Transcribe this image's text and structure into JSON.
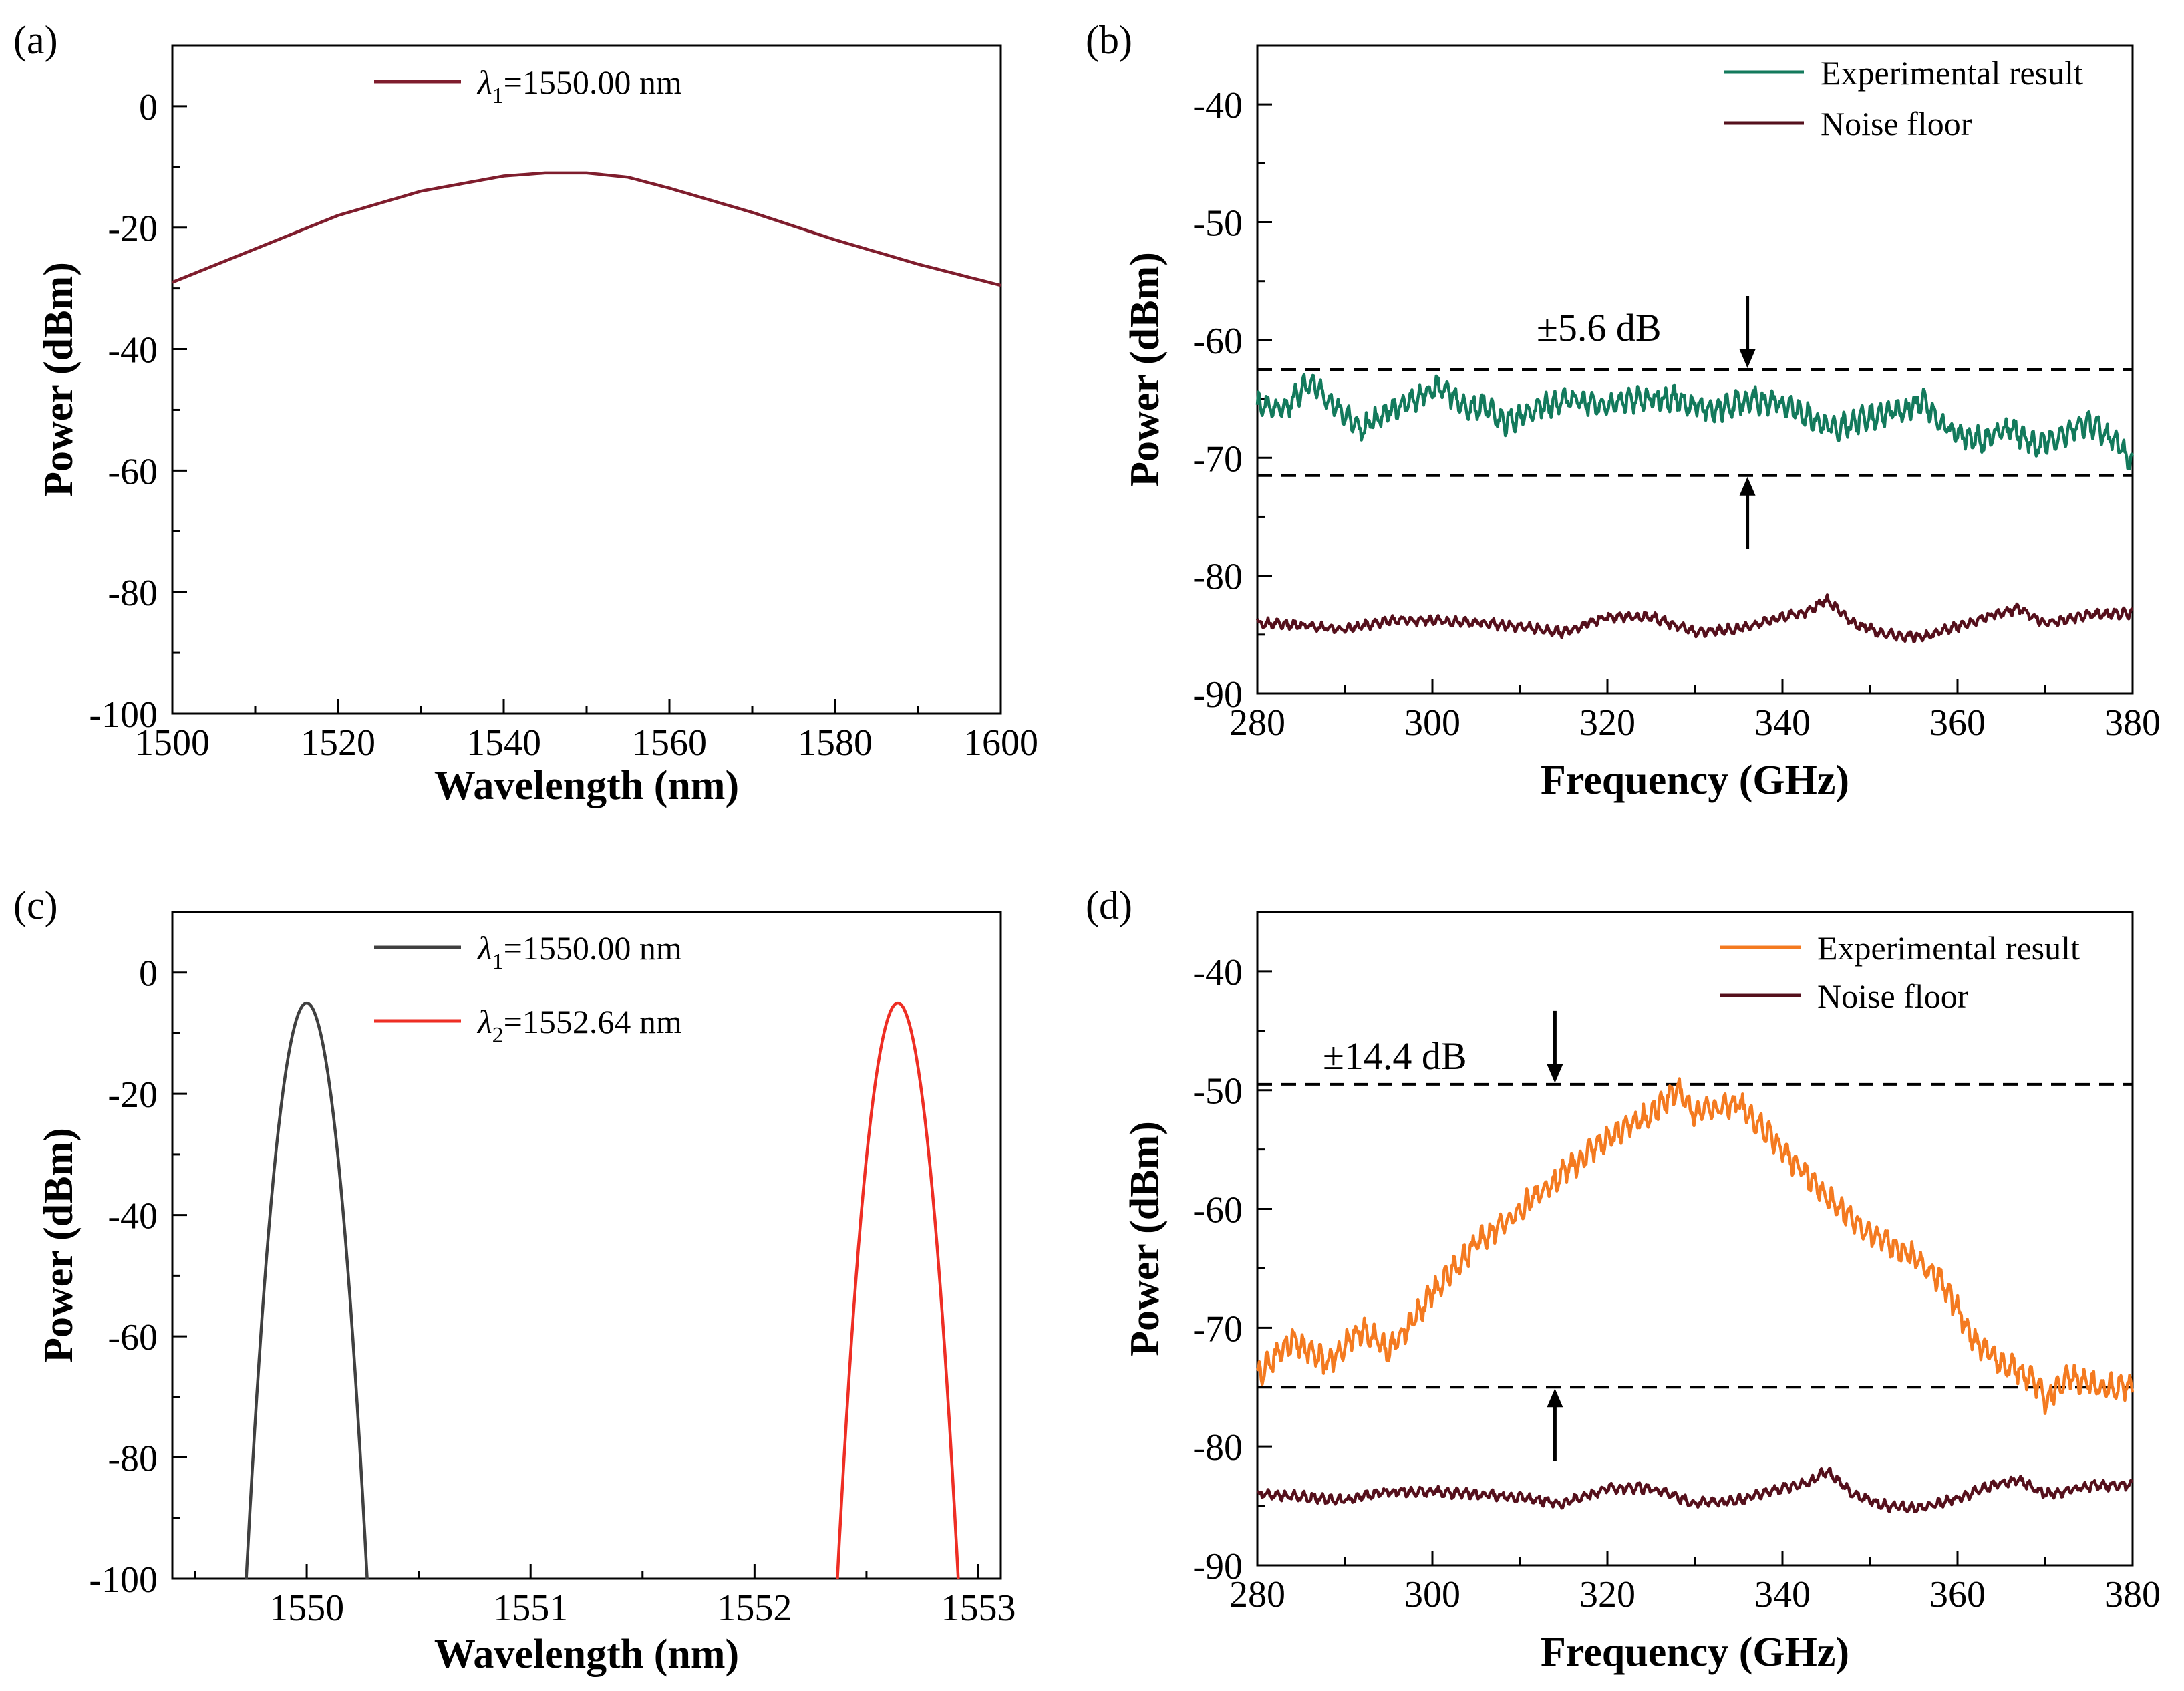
{
  "chart_data": [
    {
      "id": "a",
      "panel_label": "(a)",
      "type": "line",
      "xlabel": "Wavelength (nm)",
      "ylabel": "Power (dBm)",
      "xlim": [
        1500,
        1600
      ],
      "ylim": [
        -100,
        10
      ],
      "xticks": [
        1500,
        1520,
        1540,
        1560,
        1580,
        1600
      ],
      "yticks": [
        -100,
        -80,
        -60,
        -40,
        -20,
        0
      ],
      "legend_position": "top-center",
      "series": [
        {
          "name": "λ1=1550.00 nm",
          "legend": {
            "prefix": "λ",
            "sub": "1",
            "suffix": "=1550.00 nm"
          },
          "color": "#7f1d2d",
          "x": [
            1500,
            1510,
            1520,
            1530,
            1540,
            1545,
            1550,
            1555,
            1560,
            1570,
            1580,
            1590,
            1600
          ],
          "y": [
            -29,
            -23.5,
            -18,
            -14,
            -11.5,
            -11,
            -11,
            -11.7,
            -13.5,
            -17.5,
            -22,
            -26,
            -29.5
          ]
        }
      ],
      "reference_lines": [],
      "annotation": null
    },
    {
      "id": "b",
      "panel_label": "(b)",
      "type": "line",
      "xlabel": "Frequency (GHz)",
      "ylabel": "Power (dBm)",
      "xlim": [
        280,
        380
      ],
      "ylim": [
        -90,
        -35
      ],
      "xticks": [
        280,
        300,
        320,
        340,
        360,
        380
      ],
      "yticks": [
        -90,
        -80,
        -70,
        -60,
        -50,
        -40
      ],
      "legend_position": "top-right",
      "series": [
        {
          "name": "Experimental result",
          "color": "#137a5c",
          "x": [
            280,
            283,
            286,
            288,
            290,
            292,
            295,
            298,
            300,
            302,
            304,
            306,
            308,
            310,
            313,
            316,
            320,
            324,
            328,
            332,
            336,
            340,
            342,
            344,
            346,
            350,
            354,
            356,
            358,
            360,
            363,
            366,
            369,
            372,
            375,
            378,
            380
          ],
          "y": [
            -65.5,
            -66,
            -63.5,
            -65,
            -66.5,
            -67.5,
            -66,
            -65,
            -64,
            -64.5,
            -66,
            -65.5,
            -67,
            -66.5,
            -65.5,
            -65,
            -65.5,
            -65,
            -65,
            -66,
            -65,
            -65.5,
            -66,
            -67,
            -67.5,
            -66.5,
            -66,
            -65,
            -67,
            -68,
            -68.5,
            -67.5,
            -69,
            -68,
            -67,
            -68.5,
            -70.5
          ],
          "noise_amp": 1.2
        },
        {
          "name": "Noise floor",
          "color": "#55101c",
          "x": [
            280,
            285,
            290,
            295,
            300,
            305,
            310,
            315,
            320,
            325,
            330,
            335,
            340,
            343,
            345,
            348,
            352,
            356,
            360,
            364,
            367,
            370,
            372,
            375,
            380
          ],
          "y": [
            -84,
            -84.2,
            -84.5,
            -83.8,
            -83.8,
            -84,
            -84.3,
            -84.8,
            -83.5,
            -83.5,
            -84.8,
            -84.5,
            -83.5,
            -83,
            -82,
            -84,
            -85,
            -85.2,
            -84.3,
            -83.3,
            -82.8,
            -84,
            -83.8,
            -83.3,
            -83.2
          ],
          "noise_amp": 0.5
        }
      ],
      "reference_lines": [
        -62.5,
        -71.5
      ],
      "annotation": {
        "text": "±5.6 dB",
        "arrow_x": 336
      }
    },
    {
      "id": "c",
      "panel_label": "(c)",
      "type": "line",
      "xlabel": "Wavelength (nm)",
      "ylabel": "Power (dBm)",
      "xlim": [
        1549.4,
        1553.1
      ],
      "ylim": [
        -100,
        10
      ],
      "xticks": [
        1550,
        1551,
        1552,
        1553
      ],
      "yticks": [
        -100,
        -80,
        -60,
        -40,
        -20,
        0
      ],
      "legend_position": "top-center",
      "series": [
        {
          "name": "λ1=1550.00 nm",
          "legend": {
            "prefix": "λ",
            "sub": "1",
            "suffix": "=1550.00 nm"
          },
          "color": "#404040",
          "peak": 1550.0,
          "peak_power": -5,
          "x_start": 1549.73,
          "x_end": 1550.27
        },
        {
          "name": "λ2=1552.64 nm",
          "legend": {
            "prefix": "λ",
            "sub": "2",
            "suffix": "=1552.64 nm"
          },
          "color": "#ee2e24",
          "peak": 1552.64,
          "peak_power": -5,
          "x_start": 1552.37,
          "x_end": 1552.91
        }
      ],
      "reference_lines": [],
      "annotation": null
    },
    {
      "id": "d",
      "panel_label": "(d)",
      "type": "line",
      "xlabel": "Frequency (GHz)",
      "ylabel": "Power (dBm)",
      "xlim": [
        280,
        380
      ],
      "ylim": [
        -90,
        -35
      ],
      "xticks": [
        280,
        300,
        320,
        340,
        360,
        380
      ],
      "yticks": [
        -90,
        -80,
        -70,
        -60,
        -50,
        -40
      ],
      "legend_position": "top-right",
      "series": [
        {
          "name": "Experimental result",
          "color": "#f47a20",
          "x": [
            280,
            284,
            288,
            292,
            295,
            300,
            305,
            310,
            315,
            320,
            325,
            328,
            330,
            335,
            340,
            345,
            350,
            355,
            358,
            362,
            365,
            368,
            370,
            373,
            376,
            380
          ],
          "y": [
            -74,
            -71,
            -73,
            -70,
            -72,
            -67,
            -63,
            -60,
            -57,
            -54,
            -52,
            -50,
            -52,
            -51,
            -55,
            -59,
            -62,
            -64,
            -66,
            -71,
            -73,
            -74,
            -76,
            -74,
            -75,
            -75
          ],
          "noise_amp": 1.3
        },
        {
          "name": "Noise floor",
          "color": "#55101c",
          "x": [
            280,
            285,
            290,
            295,
            300,
            305,
            310,
            315,
            320,
            325,
            330,
            335,
            340,
            343,
            345,
            348,
            352,
            356,
            360,
            364,
            367,
            370,
            372,
            375,
            380
          ],
          "y": [
            -84,
            -84.2,
            -84.5,
            -83.8,
            -83.8,
            -84,
            -84.3,
            -84.8,
            -83.5,
            -83.5,
            -84.8,
            -84.5,
            -83.5,
            -83,
            -82,
            -84,
            -85,
            -85.2,
            -84.3,
            -83.3,
            -82.8,
            -84,
            -83.8,
            -83.3,
            -83.2
          ],
          "noise_amp": 0.5
        }
      ],
      "reference_lines": [
        -49.5,
        -75
      ],
      "annotation": {
        "text": "±14.4 dB",
        "arrow_x": 314
      }
    }
  ]
}
